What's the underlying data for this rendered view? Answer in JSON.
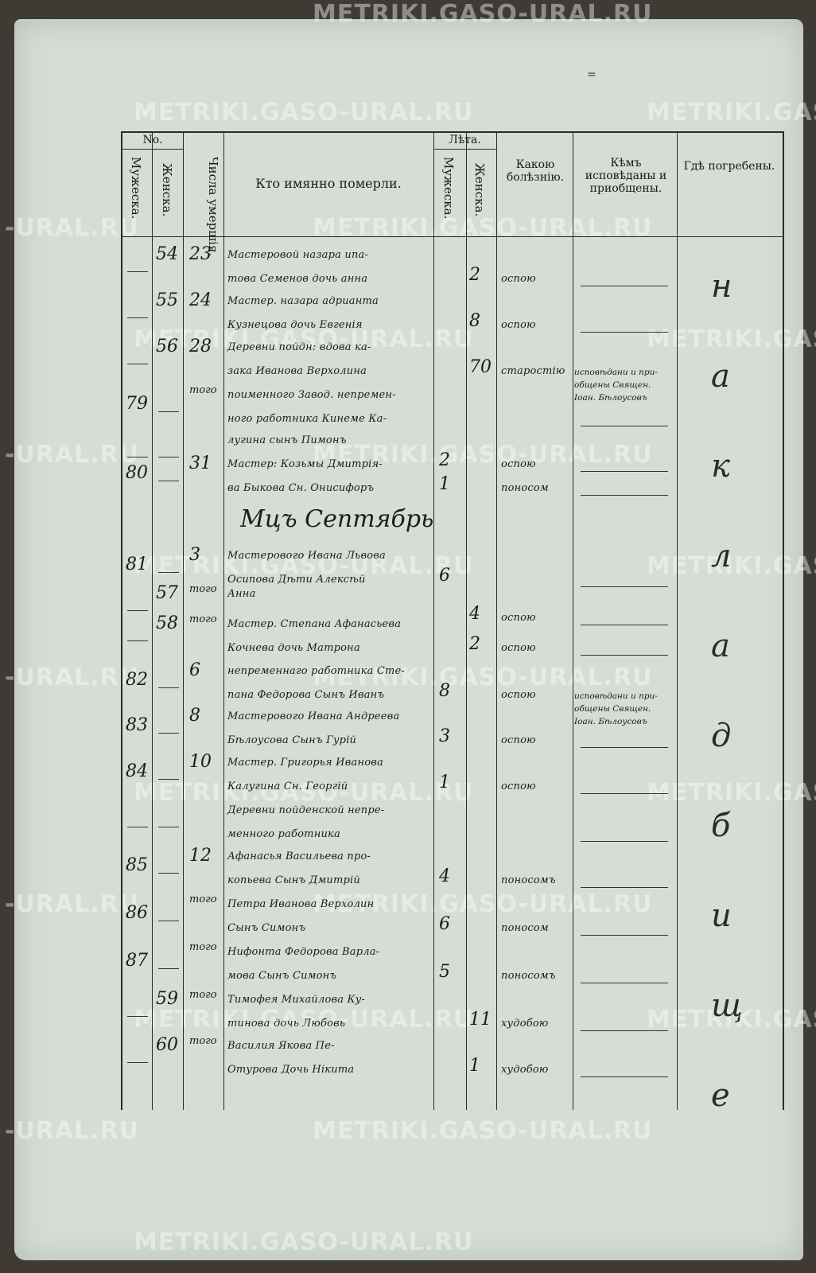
{
  "header": {
    "page_mark": "=",
    "no": "No.",
    "male": "Мужеска.",
    "female": "Женска.",
    "day": "Числа умершiя.",
    "who": "Кто имянно померли.",
    "years": "Лѣта.",
    "years_male": "Мужеска.",
    "years_female": "Женска.",
    "disease": "Какою болѣзнiю.",
    "confessed": "Кѣмъ исповѣданы и приобщены.",
    "buried": "Гдѣ погребены."
  },
  "watermark": "METRIKI.GASO-URAL.RU",
  "watermark_short": "-URAL.RU",
  "month_heading": "Мцъ Септябрь",
  "buried_vertical": [
    "н",
    "а",
    "к",
    "л",
    "а",
    "д",
    "б",
    "и",
    "щ",
    "е"
  ],
  "rows": [
    {
      "m": "",
      "f": "54",
      "d": "23",
      "l1": "Мастеровой назара ипа-",
      "l2": "това Семенов дочь анна",
      "ym": "",
      "yf": "2",
      "dis": "оспою",
      "conf": ""
    },
    {
      "m": "",
      "f": "55",
      "d": "24",
      "l1": "Мастер. назара адрианта",
      "l2": "Кузнецова дочь Евгенія",
      "ym": "",
      "yf": "8",
      "dis": "оспою",
      "conf": ""
    },
    {
      "m": "",
      "f": "56",
      "d": "28",
      "l1": "Деревни пойдн: вдова ка-",
      "l2": "зака Иванова Верхолина",
      "ym": "",
      "yf": "70",
      "dis": "старостію",
      "conf": "исповѣдани и при-\nобщены Священ.\nІоан. Бѣлоусовъ"
    },
    {
      "m": "79",
      "f": "",
      "d": "того",
      "l1": "поименного Завод. непремен-",
      "l2": "ного работника Кинеме Ка-",
      "ym": "",
      "yf": "",
      "dis": "",
      "conf": ""
    },
    {
      "m": "",
      "f": "",
      "d": "",
      "l1": "лугина сынъ Пимонъ",
      "l2": "",
      "ym": "2",
      "yf": "",
      "dis": "оспою",
      "conf": ""
    },
    {
      "m": "80",
      "f": "",
      "d": "31",
      "l1": "Мастер: Козьмы Дмитрія-",
      "l2": "ва Быкова Сн. Онисифоръ",
      "ym": "1",
      "yf": "",
      "dis": "поносом",
      "conf": ""
    },
    {
      "m": "81",
      "f": "",
      "d": "3",
      "l1": "Мастерового Ивана Львова",
      "l2": "Осипова Дѣти Алексѣй",
      "ym": "6",
      "yf": "",
      "dis": "",
      "conf": ""
    },
    {
      "m": "",
      "f": "57",
      "d": "того",
      "l1": "Анна",
      "l2": "",
      "ym": "",
      "yf": "4",
      "dis": "оспою",
      "conf": ""
    },
    {
      "m": "",
      "f": "58",
      "d": "того",
      "l1": "Мастер. Степана Афанасьева",
      "l2": "Кочнева дочь Матрона",
      "ym": "",
      "yf": "2",
      "dis": "оспою",
      "conf": ""
    },
    {
      "m": "82",
      "f": "",
      "d": "6",
      "l1": "непременнаго работника Сте-",
      "l2": "пана Федорова Сынъ Иванъ",
      "ym": "8",
      "yf": "",
      "dis": "оспою",
      "conf": "исповѣдани и при-\nобщены Священ.\nІоан. Бѣлоусовъ"
    },
    {
      "m": "83",
      "f": "",
      "d": "8",
      "l1": "Мастерового Ивана Андреева",
      "l2": "Бѣлоусова Сынъ Гурiй",
      "ym": "3",
      "yf": "",
      "dis": "оспою",
      "conf": ""
    },
    {
      "m": "84",
      "f": "",
      "d": "10",
      "l1": "Мастер. Григорья Иванова",
      "l2": "Калугина Сн. Георгiй",
      "ym": "1",
      "yf": "",
      "dis": "оспою",
      "conf": ""
    },
    {
      "m": "",
      "f": "",
      "d": "",
      "l1": "Деревни пойденской непре-",
      "l2": "менного работника",
      "ym": "",
      "yf": "",
      "dis": "",
      "conf": ""
    },
    {
      "m": "85",
      "f": "",
      "d": "12",
      "l1": "Афанасья Васильева про-",
      "l2": "копьева Сынъ Дмитрiй",
      "ym": "4",
      "yf": "",
      "dis": "поносомъ",
      "conf": ""
    },
    {
      "m": "86",
      "f": "",
      "d": "того",
      "l1": "Петра Иванова Верхолин",
      "l2": "Сынъ Симонъ",
      "ym": "6",
      "yf": "",
      "dis": "поносом",
      "conf": ""
    },
    {
      "m": "87",
      "f": "",
      "d": "того",
      "l1": "Нифонта Федорова Варла-",
      "l2": "мова Сынъ Симонъ",
      "ym": "5",
      "yf": "",
      "dis": "поносомъ",
      "conf": ""
    },
    {
      "m": "",
      "f": "59",
      "d": "того",
      "l1": "Тимофея Михайлова Ку-",
      "l2": "тинова дочь Любовь",
      "ym": "",
      "yf": "11",
      "dis": "худобою",
      "conf": ""
    },
    {
      "m": "",
      "f": "60",
      "d": "того",
      "l1": "Василия Якова Пе-",
      "l2": "Отурова Дочь Нiкита",
      "ym": "",
      "yf": "1",
      "dis": "худобою",
      "conf": ""
    }
  ]
}
